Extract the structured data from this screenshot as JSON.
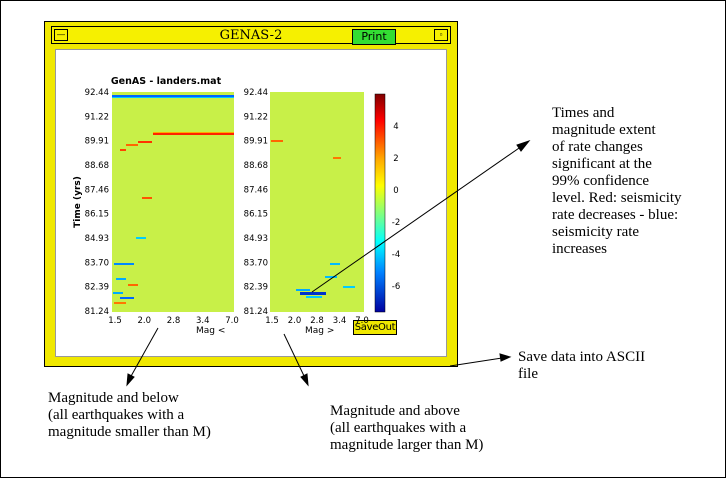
{
  "window": {
    "title": "GENAS-2",
    "menu_icon": "minus-icon",
    "maximize_icon": "square-icon",
    "print_label": "Print",
    "save_label": "SaveOut"
  },
  "plot": {
    "title": "GenAS - landers.mat",
    "y_label": "Time (yrs)",
    "y_ticks": [
      "92.44",
      "91.22",
      "89.91",
      "88.68",
      "87.46",
      "86.15",
      "84.93",
      "83.70",
      "82.39",
      "81.24"
    ],
    "left_xlabel": "Mag <",
    "right_xlabel": "Mag >",
    "x_ticks": [
      "1.5",
      "2.0",
      "2.8",
      "3.4",
      "7.0"
    ],
    "colorbar_ticks": [
      "4",
      "2",
      "0",
      "-2",
      "-4",
      "-6"
    ],
    "colors": {
      "background": "#c8f048",
      "increase": "#00c8ff",
      "decrease": "#ff3300"
    }
  },
  "annotations": {
    "rate_changes": [
      "Times and",
      "magnitude extent",
      "of rate changes",
      "significant at the",
      "99% confidence",
      "level. Red: seismicity",
      "rate decreases - blue:",
      "seismicity rate",
      "increases"
    ],
    "save_data": [
      "Save data into ASCII",
      "file"
    ],
    "mag_below": [
      "Magnitude and below",
      "(all earthquakes with a",
      "magnitude smaller than M)"
    ],
    "mag_above": [
      "Magnitude and above",
      "(all earthquakes with a",
      "magnitude larger than M)"
    ]
  }
}
